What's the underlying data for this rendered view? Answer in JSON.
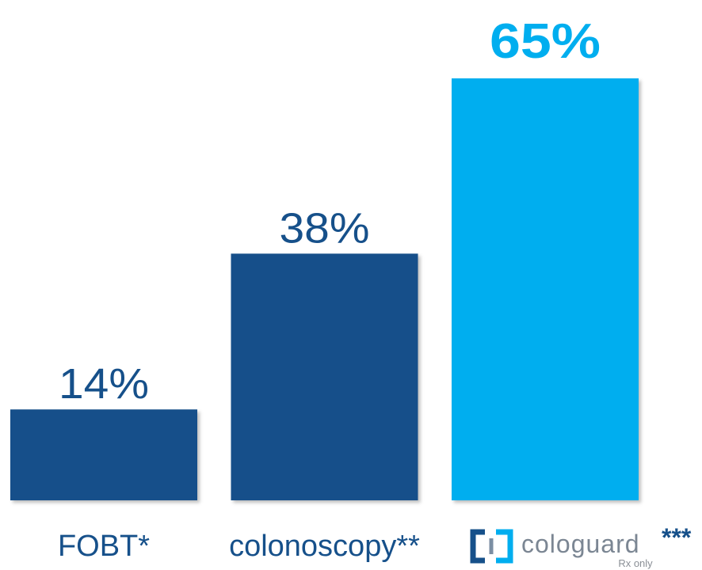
{
  "chart_data": {
    "type": "bar",
    "categories": [
      "FOBT*",
      "colonoscopy**",
      "cologuard"
    ],
    "values": [
      14,
      38,
      65
    ],
    "value_labels": [
      "14%",
      "38%",
      "65%"
    ],
    "colors": [
      "#16508a",
      "#16508a",
      "#00aeef"
    ],
    "annotations": [
      "***",
      "Rx only"
    ]
  }
}
